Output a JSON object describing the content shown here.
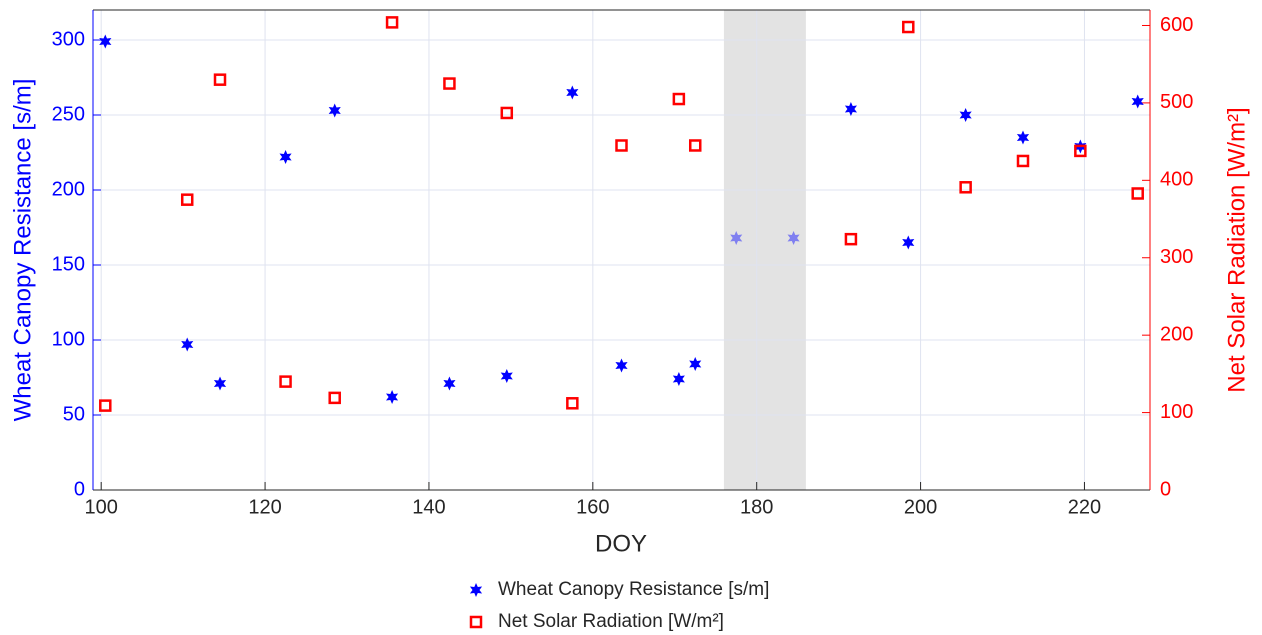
{
  "chart_data": {
    "type": "scatter",
    "xlabel": "DOY",
    "ylabel": "Wheat Canopy Resistance [s/m]",
    "y2label": "Net Solar Radiation [W/m²]",
    "xlim": [
      99,
      228
    ],
    "ylim": [
      0,
      320
    ],
    "y2lim": [
      0,
      620
    ],
    "xticks": [
      100,
      120,
      140,
      160,
      180,
      200,
      220
    ],
    "yticks": [
      0,
      50,
      100,
      150,
      200,
      250,
      300
    ],
    "y2ticks": [
      0,
      100,
      200,
      300,
      400,
      500,
      600
    ],
    "grid": true,
    "legend": "bottom",
    "shaded_region": [
      176,
      186
    ],
    "series": [
      {
        "name": "Wheat Canopy Resistance [s/m]",
        "color": "#0000ff",
        "marker": "star",
        "x": [
          100.5,
          110.5,
          114.5,
          122.5,
          128.5,
          135.5,
          142.5,
          149.5,
          157.5,
          163.5,
          170.5,
          172.5,
          177.5,
          184.5,
          191.5,
          198.5,
          205.5,
          212.5,
          219.5,
          226.5
        ],
        "values": [
          299,
          97,
          71,
          222,
          253,
          62,
          71,
          76,
          265,
          83,
          74,
          84,
          168,
          168,
          254,
          165,
          250,
          235,
          229,
          259
        ],
        "colors": [
          "#0000ff",
          "#0000ff",
          "#0000ff",
          "#0000ff",
          "#0000ff",
          "#0000ff",
          "#0000ff",
          "#0000ff",
          "#0000ff",
          "#0000ff",
          "#0000ff",
          "#0000ff",
          "#8080f0",
          "#8080f0",
          "#0000ff",
          "#0000ff",
          "#0000ff",
          "#0000ff",
          "#0000ff",
          "#0000ff"
        ]
      },
      {
        "name": "Net Solar Radiation [W/m²]",
        "color": "#ff0000",
        "marker": "square",
        "axis": "y2",
        "x": [
          100.5,
          110.5,
          114.5,
          122.5,
          128.5,
          135.5,
          142.5,
          149.5,
          157.5,
          163.5,
          170.5,
          172.5,
          191.5,
          198.5,
          205.5,
          212.5,
          219.5,
          226.5
        ],
        "values": [
          109,
          375,
          530,
          140,
          119,
          604,
          525,
          487,
          112,
          445,
          505,
          445,
          324,
          598,
          391,
          425,
          438,
          383
        ]
      }
    ]
  }
}
